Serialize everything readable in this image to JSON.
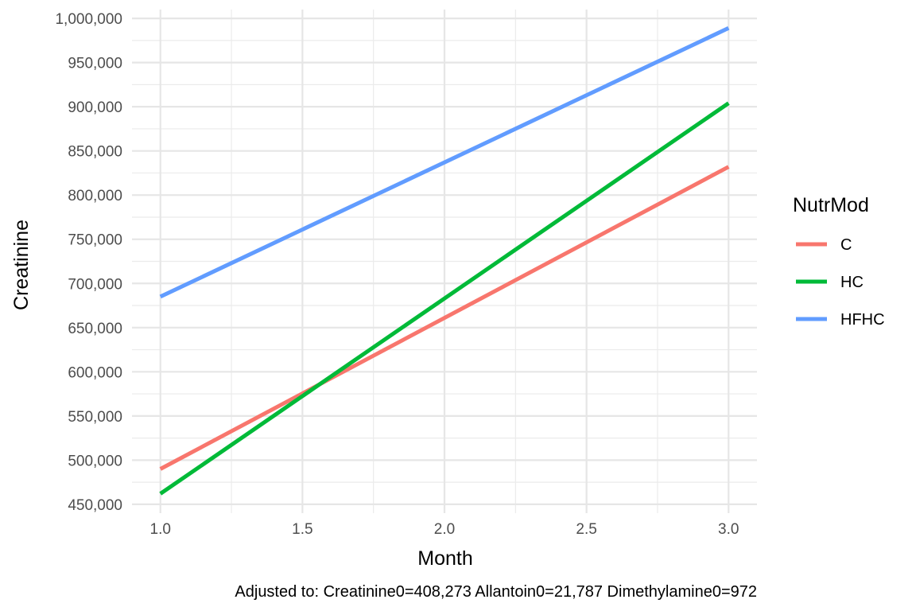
{
  "chart_data": {
    "type": "line",
    "xlabel": "Month",
    "ylabel": "Creatinine",
    "caption": "Adjusted to: Creatinine0=408,273 Allantoin0=21,787 Dimethylamine0=972",
    "xlim": [
      0.9,
      3.1
    ],
    "ylim": [
      440000,
      1010000
    ],
    "x_ticks": [
      1.0,
      1.5,
      2.0,
      2.5,
      3.0
    ],
    "x_tick_labels": [
      "1.0",
      "1.5",
      "2.0",
      "2.5",
      "3.0"
    ],
    "y_ticks": [
      450000,
      500000,
      550000,
      600000,
      650000,
      700000,
      750000,
      800000,
      850000,
      900000,
      950000,
      1000000
    ],
    "y_tick_labels": [
      "450,000",
      "500,000",
      "550,000",
      "600,000",
      "650,000",
      "700,000",
      "750,000",
      "800,000",
      "850,000",
      "900,000",
      "950,000",
      "1,000,000"
    ],
    "grid": true,
    "legend": {
      "title": "NutrMod",
      "position": "right"
    },
    "series": [
      {
        "name": "C",
        "color": "#F8766D",
        "x": [
          1.0,
          3.0
        ],
        "y": [
          490000,
          832000
        ]
      },
      {
        "name": "HC",
        "color": "#00BA38",
        "x": [
          1.0,
          3.0
        ],
        "y": [
          462000,
          904000
        ]
      },
      {
        "name": "HFHC",
        "color": "#619CFF",
        "x": [
          1.0,
          3.0
        ],
        "y": [
          685000,
          989000
        ]
      }
    ]
  }
}
